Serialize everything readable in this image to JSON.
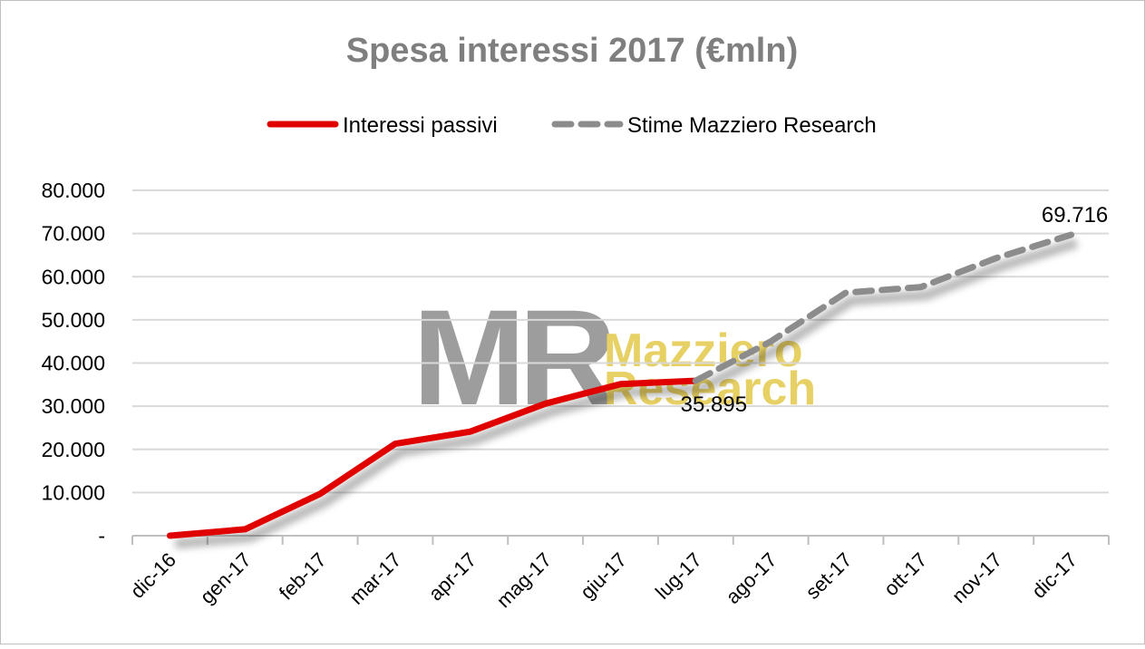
{
  "chart_data": {
    "type": "line",
    "title": "Spesa interessi 2017 (€mln)",
    "xlabel": "",
    "ylabel": "",
    "categories": [
      "dic-16",
      "gen-17",
      "feb-17",
      "mar-17",
      "apr-17",
      "mag-17",
      "giu-17",
      "lug-17",
      "ago-17",
      "set-17",
      "ott-17",
      "nov-17",
      "dic-17"
    ],
    "ylim": [
      0,
      80000
    ],
    "yticks": [
      {
        "value": 0,
        "label": "-"
      },
      {
        "value": 10000,
        "label": "10.000"
      },
      {
        "value": 20000,
        "label": "20.000"
      },
      {
        "value": 30000,
        "label": "30.000"
      },
      {
        "value": 40000,
        "label": "40.000"
      },
      {
        "value": 50000,
        "label": "50.000"
      },
      {
        "value": 60000,
        "label": "60.000"
      },
      {
        "value": 70000,
        "label": "70.000"
      },
      {
        "value": 80000,
        "label": "80.000"
      }
    ],
    "grid": true,
    "legend_position": "top",
    "series": [
      {
        "name": "Interessi passivi",
        "color": "#e00000",
        "style": "solid",
        "values": [
          0,
          1500,
          9700,
          21300,
          24100,
          30600,
          35100,
          35895,
          null,
          null,
          null,
          null,
          null
        ]
      },
      {
        "name": "Stime Mazziero Research",
        "color": "#8c8c8c",
        "style": "dashed",
        "values": [
          null,
          null,
          null,
          null,
          null,
          null,
          null,
          35895,
          45000,
          56300,
          57600,
          64300,
          69716
        ]
      }
    ],
    "annotations": [
      {
        "text": "35.895",
        "category": "lug-17",
        "value": 35895
      },
      {
        "text": "69.716",
        "category": "dic-17",
        "value": 69716
      }
    ]
  },
  "watermark": {
    "letters": "MR",
    "line1": "Mazziero",
    "line2": "Research"
  }
}
